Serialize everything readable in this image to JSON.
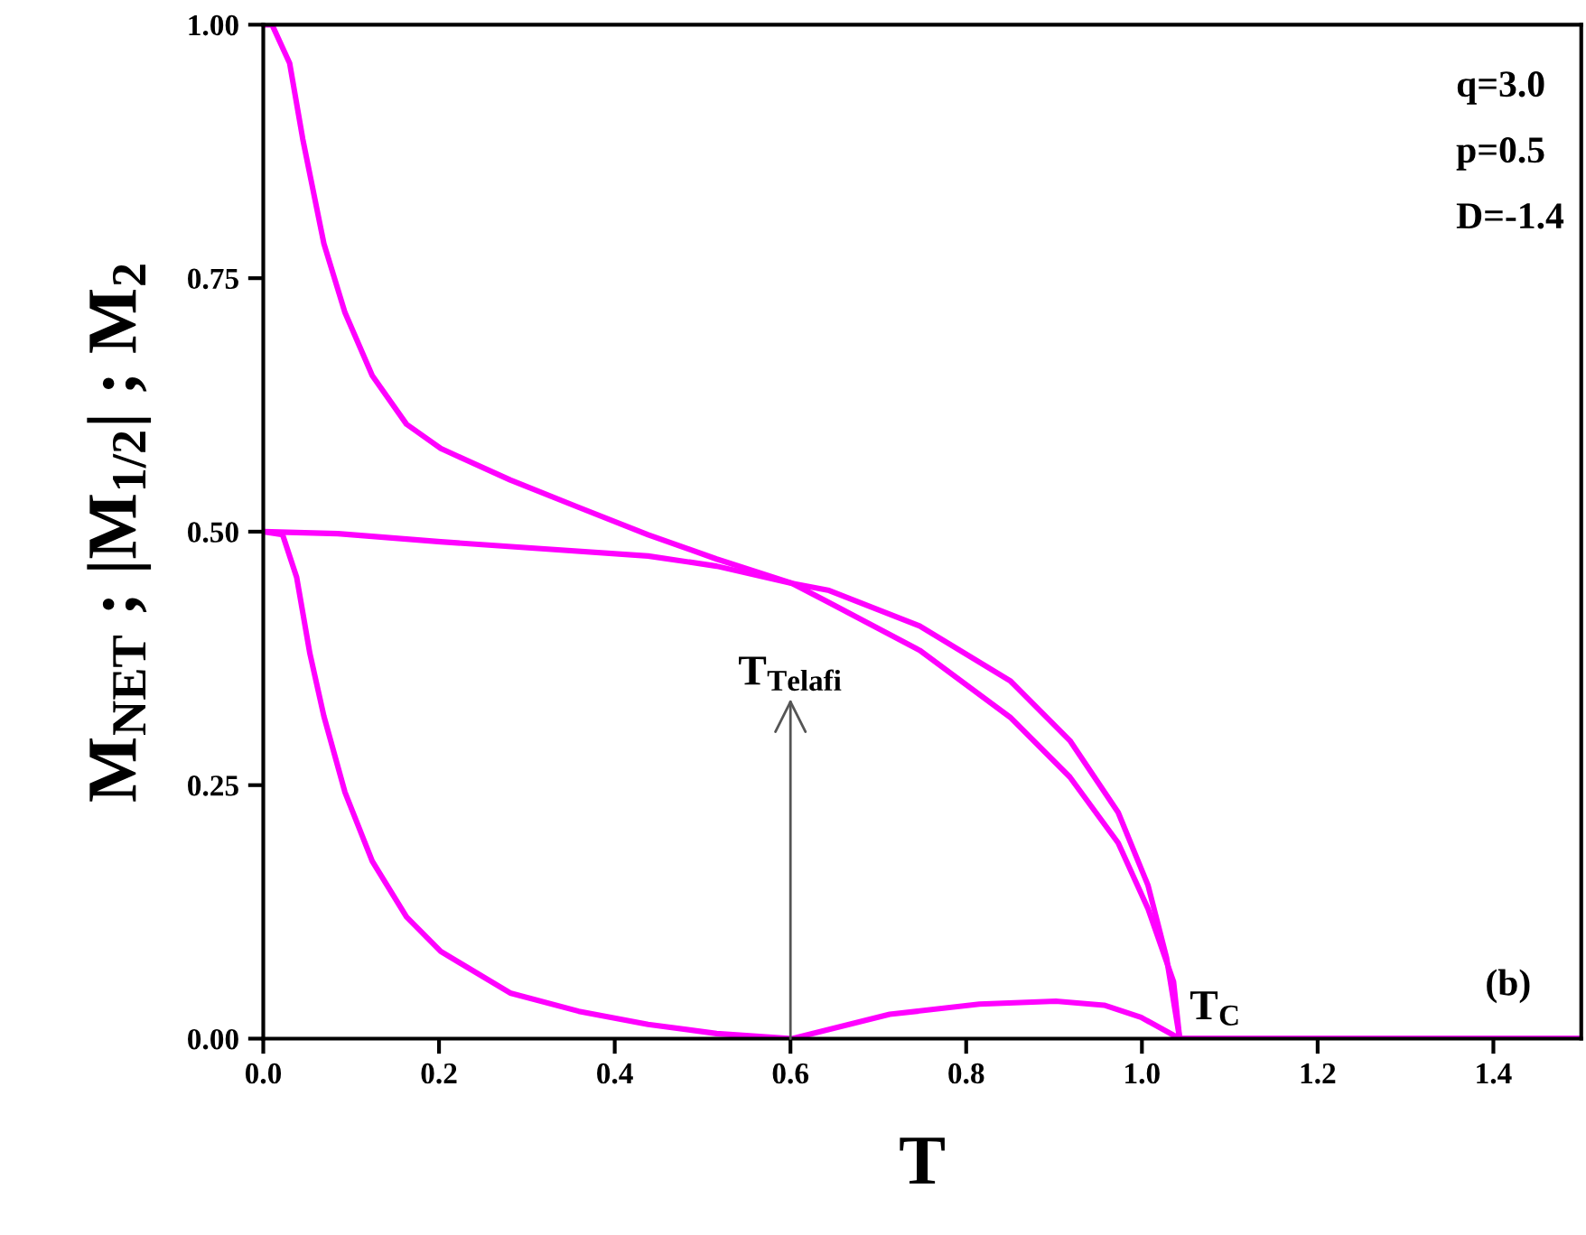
{
  "chart_data": {
    "type": "line",
    "xlabel": "T",
    "ylabel": "M$_{NET}$ ; |M$_{1/2}$| ; M$_{2}$",
    "xlim": [
      0,
      1.5
    ],
    "ylim": [
      0,
      1
    ],
    "xticks": [
      {
        "value": 0,
        "label": "0.0"
      },
      {
        "value": 0.2,
        "label": "0.2"
      },
      {
        "value": 0.4,
        "label": "0.4"
      },
      {
        "value": 0.6,
        "label": "0.6"
      },
      {
        "value": 0.8,
        "label": "0.8"
      },
      {
        "value": 1.0,
        "label": "1.0"
      },
      {
        "value": 1.2,
        "label": "1.2"
      },
      {
        "value": 1.4,
        "label": "1.4"
      }
    ],
    "yticks": [
      {
        "value": 0,
        "label": "0.00"
      },
      {
        "value": 0.25,
        "label": "0.25"
      },
      {
        "value": 0.5,
        "label": "0.50"
      },
      {
        "value": 0.75,
        "label": "0.75"
      },
      {
        "value": 1.0,
        "label": "1.00"
      }
    ],
    "grid": false,
    "legend": false,
    "marker": "none",
    "line_style": "solid",
    "series": [
      {
        "color": "#ff00ff",
        "x": [
          0,
          0.01,
          0.03,
          0.045,
          0.069,
          0.093,
          0.124,
          0.163,
          0.202,
          0.281,
          0.359,
          0.438,
          0.516,
          0.602,
          0.644,
          0.747,
          0.85,
          0.918,
          0.973,
          1.007,
          1.028,
          1.043,
          1.5
        ],
        "values": [
          1.0,
          1.0,
          0.962,
          0.887,
          0.784,
          0.716,
          0.654,
          0.606,
          0.582,
          0.551,
          0.524,
          0.497,
          0.473,
          0.449,
          0.442,
          0.407,
          0.353,
          0.294,
          0.223,
          0.151,
          0.08,
          0,
          0
        ]
      },
      {
        "color": "#ff00ff",
        "x": [
          0,
          0.085,
          0.202,
          0.32,
          0.438,
          0.516,
          0.602,
          0.644,
          0.747,
          0.85,
          0.918,
          0.973,
          1.007,
          1.036,
          1.043,
          1.5
        ],
        "values": [
          0.5,
          0.498,
          0.49,
          0.483,
          0.476,
          0.466,
          0.449,
          0.43,
          0.383,
          0.317,
          0.258,
          0.193,
          0.128,
          0.056,
          0,
          0
        ]
      },
      {
        "color": "#ff00ff",
        "x": [
          0,
          0.022,
          0.038,
          0.053,
          0.069,
          0.093,
          0.124,
          0.163,
          0.202,
          0.281,
          0.359,
          0.438,
          0.516,
          0.602,
          0.713,
          0.815,
          0.902,
          0.957,
          0.999,
          1.043,
          1.5
        ],
        "values": [
          0.5,
          0.497,
          0.455,
          0.38,
          0.318,
          0.243,
          0.175,
          0.12,
          0.086,
          0.045,
          0.027,
          0.014,
          0.005,
          0,
          0.024,
          0.034,
          0.037,
          0.033,
          0.021,
          0,
          0
        ]
      }
    ],
    "annotations": [
      "q=3.0",
      "p=0.5",
      "D=-1.4",
      "(b)",
      {
        "text": "T$_{Telafi}$",
        "x": 0.6,
        "y": 0
      },
      {
        "text": "T$_{C}$",
        "x": 1.043,
        "y": 0
      }
    ]
  }
}
